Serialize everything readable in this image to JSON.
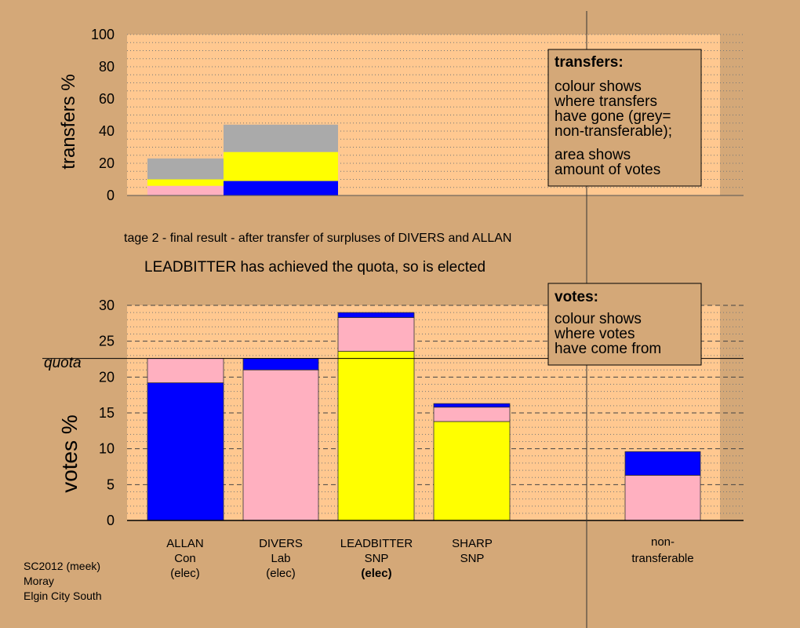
{
  "colors": {
    "background": "#d4a878",
    "plot_area": "#ffc890",
    "legend_box": "#d4a878",
    "ALLAN": "#0000ff",
    "DIVERS": "#ffb0c0",
    "LEADBITTER": "#ffff00",
    "SHARP": "#ffff00",
    "non_transferable": "#aaaaaa"
  },
  "texts": {
    "stage_caption": "tage 2 - final result - after transfer of surpluses of DIVERS and ALLAN",
    "status": "LEADBITTER has achieved the quota, so is elected",
    "quota_label": "quota",
    "credit": [
      "SC2012 (meek)",
      "Moray",
      "Elgin City South"
    ]
  },
  "legends": {
    "transfers": {
      "heading": "transfers:",
      "lines": [
        "colour shows",
        "where transfers",
        "have gone (grey=",
        "non-transferable);",
        "area shows",
        "amount of votes"
      ]
    },
    "votes": {
      "heading": "votes:",
      "lines": [
        "colour shows",
        "where votes",
        "have come from"
      ]
    }
  },
  "candidates": [
    {
      "name": "ALLAN",
      "party": "Con",
      "status": "(elec)",
      "status_bold": false
    },
    {
      "name": "DIVERS",
      "party": "Lab",
      "status": "(elec)",
      "status_bold": false
    },
    {
      "name": "LEADBITTER",
      "party": "SNP",
      "status": "(elec)",
      "status_bold": true
    },
    {
      "name": "SHARP",
      "party": "SNP",
      "status": "",
      "status_bold": false
    },
    {
      "name": "non-",
      "party": "transferable",
      "status": "",
      "status_bold": false
    }
  ],
  "chart_data": [
    {
      "type": "bar",
      "stacked": true,
      "ylabel": "transfers %",
      "ylim": [
        0,
        100
      ],
      "yticks": [
        0,
        20,
        40,
        60,
        80,
        100
      ],
      "grid": "dotted",
      "bars": [
        {
          "from": "DIVERS",
          "segments": [
            {
              "to": "DIVERS",
              "color": "#ffb0c0",
              "value": 6
            },
            {
              "to": "LEADBITTER",
              "color": "#ffff00",
              "value": 4
            },
            {
              "to": "non-transferable",
              "color": "#aaaaaa",
              "value": 13
            }
          ]
        },
        {
          "from": "ALLAN",
          "segments": [
            {
              "to": "ALLAN",
              "color": "#0000ff",
              "value": 9
            },
            {
              "to": "LEADBITTER",
              "color": "#ffff00",
              "value": 18
            },
            {
              "to": "non-transferable",
              "color": "#aaaaaa",
              "value": 17
            }
          ]
        }
      ]
    },
    {
      "type": "bar",
      "stacked": true,
      "ylabel": "votes %",
      "ylim": [
        0,
        30
      ],
      "yticks": [
        0,
        5,
        10,
        15,
        20,
        25,
        30
      ],
      "quota": 22.6,
      "grid": "dashed",
      "categories": [
        "ALLAN",
        "DIVERS",
        "LEADBITTER",
        "SHARP",
        "non-transferable"
      ],
      "series": [
        {
          "name": "ALLAN",
          "color": "#0000ff"
        },
        {
          "name": "DIVERS",
          "color": "#ffb0c0"
        },
        {
          "name": "LEADBITTER",
          "color": "#ffff00"
        }
      ],
      "bars": [
        {
          "category": "ALLAN",
          "segments": [
            {
              "color": "#0000ff",
              "value": 19.2
            },
            {
              "color": "#ffb0c0",
              "value": 3.4
            }
          ]
        },
        {
          "category": "DIVERS",
          "segments": [
            {
              "color": "#ffb0c0",
              "value": 21.0
            },
            {
              "color": "#0000ff",
              "value": 1.6
            }
          ]
        },
        {
          "category": "LEADBITTER",
          "segments": [
            {
              "color": "#ffff00",
              "value": 23.6
            },
            {
              "color": "#ffb0c0",
              "value": 4.7
            },
            {
              "color": "#0000ff",
              "value": 0.7
            }
          ]
        },
        {
          "category": "SHARP",
          "segments": [
            {
              "color": "#ffff00",
              "value": 13.8
            },
            {
              "color": "#ffb0c0",
              "value": 2.0
            },
            {
              "color": "#0000ff",
              "value": 0.5
            }
          ]
        },
        {
          "category": "non-transferable",
          "segments": [
            {
              "color": "#ffb0c0",
              "value": 6.3
            },
            {
              "color": "#0000ff",
              "value": 3.3
            }
          ]
        }
      ]
    }
  ]
}
